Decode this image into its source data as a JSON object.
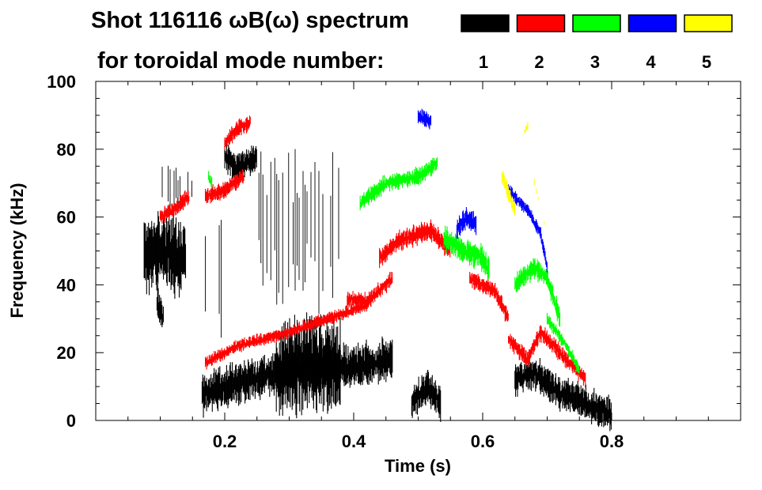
{
  "chart_data": {
    "type": "heatmap",
    "title": "Shot 116116 ωB(ω) spectrum",
    "subtitle": "for toroidal mode number:",
    "xlabel": "Time (s)",
    "ylabel": "Frequency (kHz)",
    "xlim": [
      0.0,
      1.0
    ],
    "ylim": [
      0,
      100
    ],
    "xticks": [
      0.2,
      0.4,
      0.6,
      0.8
    ],
    "xtick_labels": [
      "0.2",
      "0.4",
      "0.6",
      "0.8"
    ],
    "yticks": [
      0,
      20,
      40,
      60,
      80,
      100
    ],
    "ytick_labels": [
      "0",
      "20",
      "40",
      "60",
      "80",
      "100"
    ],
    "legend": [
      {
        "mode": "1",
        "color": "#000000"
      },
      {
        "mode": "2",
        "color": "#ff0000"
      },
      {
        "mode": "3",
        "color": "#00ff00"
      },
      {
        "mode": "4",
        "color": "#0000ff"
      },
      {
        "mode": "5",
        "color": "#ffff00"
      }
    ],
    "series": [
      {
        "name": "n=1",
        "color": "#000000",
        "features": [
          {
            "pts": [
              [
                0.075,
                48
              ],
              [
                0.1,
                50
              ],
              [
                0.14,
                48
              ]
            ],
            "bw": 18
          },
          {
            "pts": [
              [
                0.095,
                35
              ],
              [
                0.105,
                30
              ]
            ],
            "bw": 8
          },
          {
            "pts": [
              [
                0.1,
                70
              ],
              [
                0.15,
                68
              ]
            ],
            "bw": 10,
            "sparse": true
          },
          {
            "pts": [
              [
                0.165,
                8
              ],
              [
                0.2,
                10
              ],
              [
                0.28,
                14
              ],
              [
                0.35,
                16
              ],
              [
                0.4,
                16
              ],
              [
                0.46,
                18
              ]
            ],
            "bw": 10
          },
          {
            "pts": [
              [
                0.28,
                15
              ],
              [
                0.33,
                17
              ],
              [
                0.38,
                16
              ]
            ],
            "bw": 22
          },
          {
            "pts": [
              [
                0.2,
                78
              ],
              [
                0.22,
                74
              ],
              [
                0.25,
                78
              ]
            ],
            "bw": 7
          },
          {
            "pts": [
              [
                0.25,
                60
              ],
              [
                0.3,
                58
              ],
              [
                0.38,
                56
              ]
            ],
            "bw": 36,
            "sparse": true
          },
          {
            "pts": [
              [
                0.17,
                42
              ],
              [
                0.2,
                45
              ]
            ],
            "bw": 30,
            "sparse": true
          },
          {
            "pts": [
              [
                0.49,
                5
              ],
              [
                0.515,
                10
              ],
              [
                0.535,
                5
              ]
            ],
            "bw": 8
          },
          {
            "pts": [
              [
                0.65,
                12
              ],
              [
                0.68,
                14
              ],
              [
                0.72,
                8
              ],
              [
                0.76,
                5
              ],
              [
                0.8,
                2
              ]
            ],
            "bw": 8
          }
        ]
      },
      {
        "name": "n=2",
        "color": "#ff0000",
        "features": [
          {
            "pts": [
              [
                0.1,
                60
              ],
              [
                0.12,
                62
              ],
              [
                0.145,
                66
              ]
            ],
            "bw": 4
          },
          {
            "pts": [
              [
                0.17,
                66
              ],
              [
                0.2,
                68
              ],
              [
                0.23,
                72
              ]
            ],
            "bw": 4
          },
          {
            "pts": [
              [
                0.2,
                82
              ],
              [
                0.22,
                86
              ],
              [
                0.24,
                88
              ]
            ],
            "bw": 4
          },
          {
            "pts": [
              [
                0.17,
                17
              ],
              [
                0.22,
                22
              ],
              [
                0.3,
                26
              ],
              [
                0.36,
                30
              ],
              [
                0.42,
                34
              ]
            ],
            "bw": 3
          },
          {
            "pts": [
              [
                0.39,
                36
              ],
              [
                0.42,
                35
              ],
              [
                0.45,
                40
              ],
              [
                0.46,
                42
              ]
            ],
            "bw": 4
          },
          {
            "pts": [
              [
                0.44,
                48
              ],
              [
                0.47,
                53
              ],
              [
                0.5,
                55
              ],
              [
                0.52,
                56
              ],
              [
                0.55,
                50
              ]
            ],
            "bw": 5
          },
          {
            "pts": [
              [
                0.58,
                42
              ],
              [
                0.62,
                38
              ],
              [
                0.64,
                30
              ]
            ],
            "bw": 4
          },
          {
            "pts": [
              [
                0.64,
                24
              ],
              [
                0.67,
                18
              ],
              [
                0.69,
                26
              ],
              [
                0.72,
                20
              ],
              [
                0.76,
                12
              ]
            ],
            "bw": 4
          }
        ]
      },
      {
        "name": "n=3",
        "color": "#00ff00",
        "features": [
          {
            "pts": [
              [
                0.41,
                64
              ],
              [
                0.45,
                70
              ],
              [
                0.5,
                72
              ],
              [
                0.53,
                76
              ]
            ],
            "bw": 4
          },
          {
            "pts": [
              [
                0.54,
                54
              ],
              [
                0.57,
                50
              ],
              [
                0.6,
                48
              ],
              [
                0.61,
                44
              ]
            ],
            "bw": 6
          },
          {
            "pts": [
              [
                0.65,
                40
              ],
              [
                0.68,
                45
              ],
              [
                0.7,
                42
              ],
              [
                0.72,
                30
              ]
            ],
            "bw": 5
          },
          {
            "pts": [
              [
                0.7,
                30
              ],
              [
                0.73,
                22
              ],
              [
                0.75,
                15
              ]
            ],
            "bw": 3
          },
          {
            "pts": [
              [
                0.175,
                72
              ],
              [
                0.18,
                70
              ]
            ],
            "bw": 3
          }
        ]
      },
      {
        "name": "n=4",
        "color": "#0000ff",
        "features": [
          {
            "pts": [
              [
                0.5,
                90
              ],
              [
                0.52,
                88
              ]
            ],
            "bw": 4
          },
          {
            "pts": [
              [
                0.56,
                56
              ],
              [
                0.575,
                60
              ],
              [
                0.59,
                58
              ]
            ],
            "bw": 5
          },
          {
            "pts": [
              [
                0.64,
                68
              ],
              [
                0.67,
                62
              ],
              [
                0.69,
                55
              ],
              [
                0.7,
                45
              ]
            ],
            "bw": 3
          }
        ]
      },
      {
        "name": "n=5",
        "color": "#ffff00",
        "features": [
          {
            "pts": [
              [
                0.63,
                72
              ],
              [
                0.65,
                62
              ]
            ],
            "bw": 4
          },
          {
            "pts": [
              [
                0.665,
                85
              ],
              [
                0.67,
                87
              ]
            ],
            "bw": 2
          },
          {
            "pts": [
              [
                0.68,
                70
              ],
              [
                0.7,
                55
              ]
            ],
            "bw": 2,
            "sparse": true
          }
        ]
      }
    ]
  }
}
